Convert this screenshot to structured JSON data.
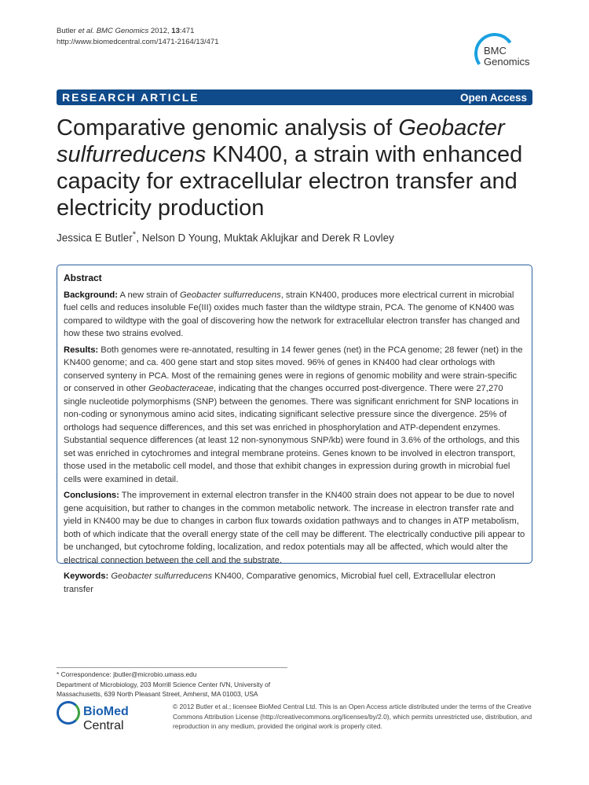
{
  "header": {
    "citation_authors": "Butler",
    "citation_etal": "et al.",
    "citation_journal": "BMC Genomics",
    "citation_year": "2012,",
    "citation_volume": "13",
    "citation_article": ":471",
    "url": "http://www.biomedcentral.com/1471-2164/13/471",
    "logo_line1": "BMC",
    "logo_line2": "Genomics"
  },
  "banner": {
    "type": "RESEARCH ARTICLE",
    "access": "Open Access"
  },
  "title": {
    "part1": "Comparative genomic analysis of ",
    "italic": "Geobacter sulfurreducens",
    "part2": " KN400, a strain with enhanced capacity for extracellular electron transfer and electricity production"
  },
  "authors": {
    "first": "Jessica E Butler",
    "mark": "*",
    "rest": ", Nelson D Young, Muktak Aklujkar and Derek R Lovley"
  },
  "abstract": {
    "heading": "Abstract",
    "background_label": "Background:",
    "background_a": " A new strain of ",
    "background_italic": "Geobacter sulfurreducens",
    "background_b": ", strain KN400, produces more electrical current in microbial fuel cells and reduces insoluble Fe(III) oxides much faster than the wildtype strain, PCA. The genome of KN400 was compared to wildtype with the goal of discovering how the network for extracellular electron transfer has changed and how these two strains evolved.",
    "results_label": "Results:",
    "results_a": " Both genomes were re-annotated, resulting in 14 fewer genes (net) in the PCA genome; 28 fewer (net) in the KN400 genome; and ca. 400 gene start and stop sites moved. 96% of genes in KN400 had clear orthologs with conserved synteny in PCA. Most of the remaining genes were in regions of genomic mobility and were strain-specific or conserved in other ",
    "results_italic": "Geobacteraceae",
    "results_b": ", indicating that the changes occurred post-divergence. There were 27,270 single nucleotide polymorphisms (SNP) between the genomes. There was significant enrichment for SNP locations in non-coding or synonymous amino acid sites, indicating significant selective pressure since the divergence. 25% of orthologs had sequence differences, and this set was enriched in phosphorylation and ATP-dependent enzymes. Substantial sequence differences (at least 12 non-synonymous SNP/kb) were found in 3.6% of the orthologs, and this set was enriched in cytochromes and integral membrane proteins. Genes known to be involved in electron transport, those used in the metabolic cell model, and those that exhibit changes in expression during growth in microbial fuel cells were examined in detail.",
    "conclusions_label": "Conclusions:",
    "conclusions": " The improvement in external electron transfer in the KN400 strain does not appear to be due to novel gene acquisition, but rather to changes in the common metabolic network. The increase in electron transfer rate and yield in KN400 may be due to changes in carbon flux towards oxidation pathways and to changes in ATP metabolism, both of which indicate that the overall energy state of the cell may be different. The electrically conductive pili appear to be unchanged, but cytochrome folding, localization, and redox potentials may all be affected, which would alter the electrical connection between the cell and the substrate.",
    "keywords_label": "Keywords:",
    "keywords_italic": "Geobacter sulfurreducens",
    "keywords": " KN400, Comparative genomics, Microbial fuel cell, Extracellular electron transfer"
  },
  "footer": {
    "correspondence_label": "* Correspondence: ",
    "correspondence_email": "jbutler@microbio.umass.edu",
    "affiliation_1": "Department of Microbiology, 203 Morrill Science Center IVN, University of",
    "affiliation_2": "Massachusetts, 639 North Pleasant Street, Amherst, MA 01003, USA",
    "publisher_logo_bold": "BioMed",
    "publisher_logo_rest": " Central",
    "license": "© 2012 Butler et al.; licensee BioMed Central Ltd. This is an Open Access article distributed under the terms of the Creative Commons Attribution License (http://creativecommons.org/licenses/by/2.0), which permits unrestricted use, distribution, and reproduction in any medium, provided the original work is properly cited."
  },
  "colors": {
    "banner": "#0f4a8a",
    "abstract_border": "#2a5f9e",
    "logo_blue": "#1aa0e0"
  }
}
